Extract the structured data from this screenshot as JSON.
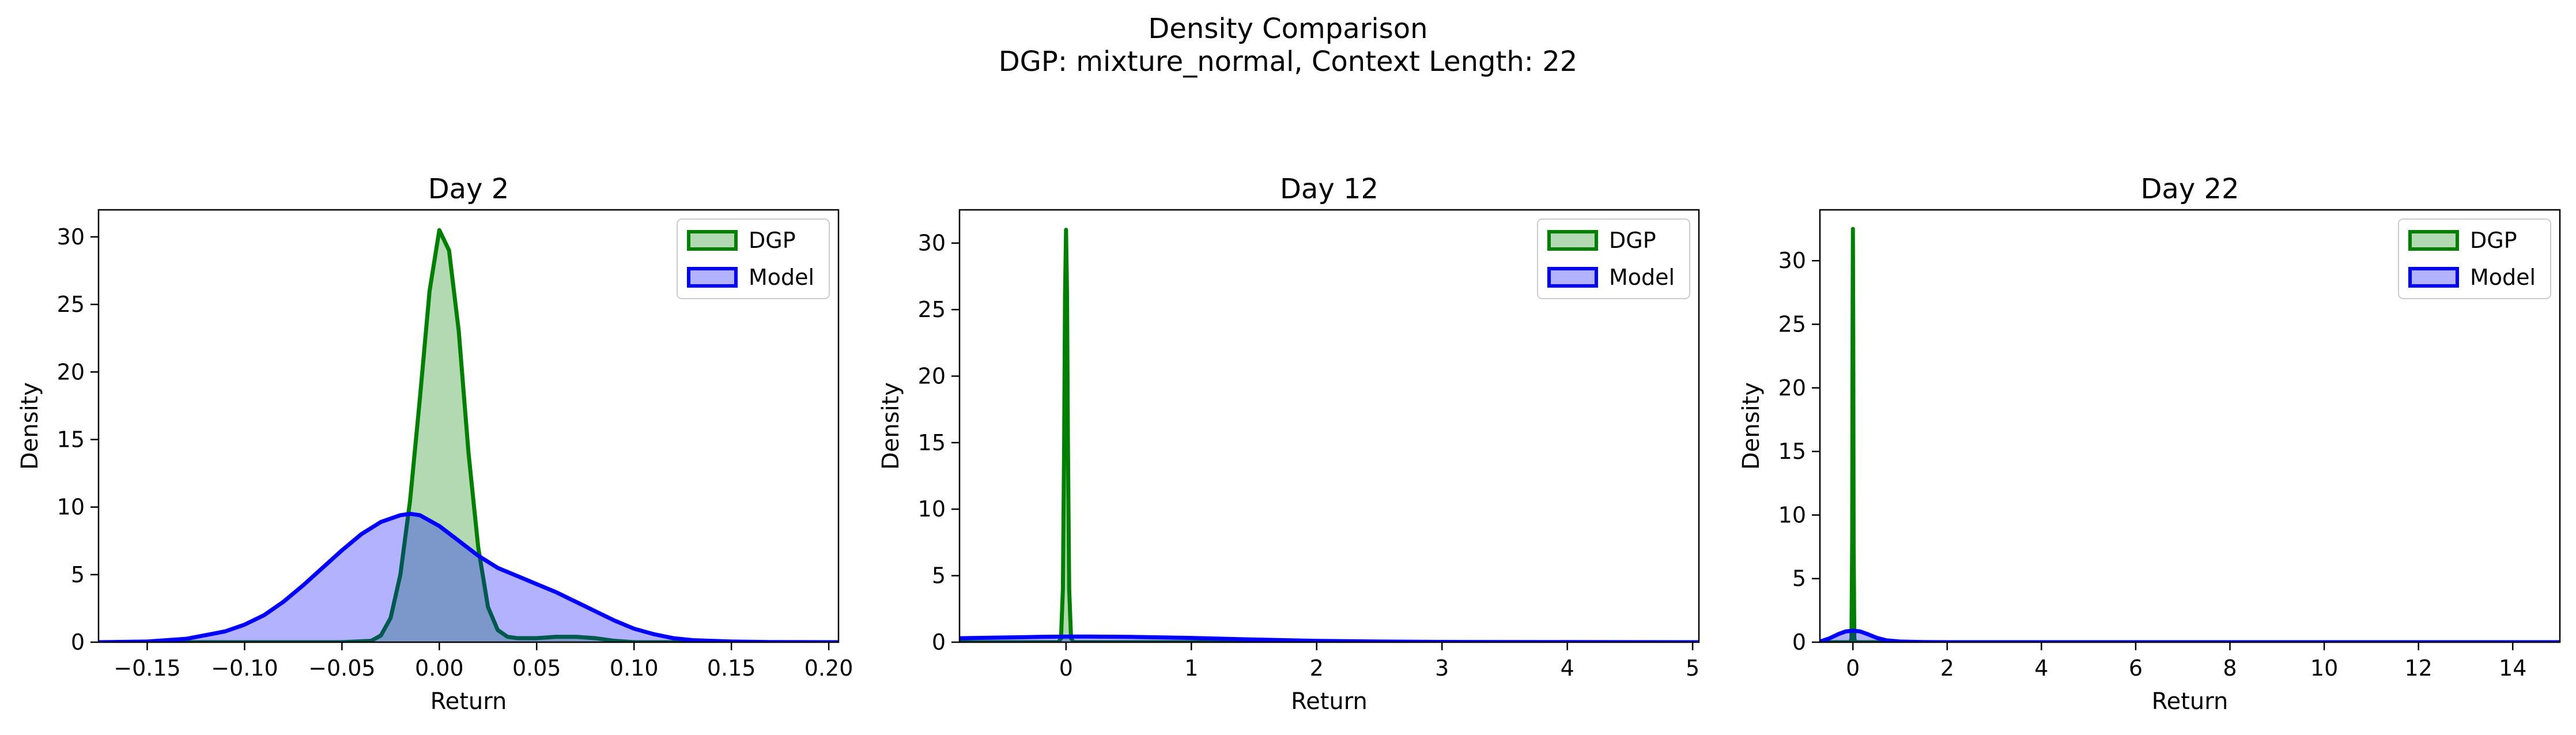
{
  "figure": {
    "title_line1": "Density Comparison",
    "title_line2": "DGP: mixture_normal, Context Length: 22"
  },
  "colors": {
    "dgp_line": "#008000",
    "dgp_fill": "#008000",
    "model_line": "#0000ff",
    "model_fill": "#0000ff"
  },
  "chart_data": [
    {
      "type": "area",
      "title": "Day 2",
      "xlabel": "Return",
      "ylabel": "Density",
      "xlim": [
        -0.175,
        0.205
      ],
      "ylim": [
        0,
        32
      ],
      "xticks": [
        -0.15,
        -0.1,
        -0.05,
        0.0,
        0.05,
        0.1,
        0.15,
        0.2
      ],
      "xtick_labels": [
        "−0.15",
        "−0.10",
        "−0.05",
        "0.00",
        "0.05",
        "0.10",
        "0.15",
        "0.20"
      ],
      "yticks": [
        0,
        5,
        10,
        15,
        20,
        25,
        30
      ],
      "grid": false,
      "legend": {
        "placement": "top-right",
        "entries": [
          "DGP",
          "Model"
        ]
      },
      "series": [
        {
          "name": "DGP",
          "x": [
            -0.175,
            -0.05,
            -0.035,
            -0.03,
            -0.025,
            -0.02,
            -0.015,
            -0.01,
            -0.005,
            0.0,
            0.005,
            0.01,
            0.015,
            0.02,
            0.025,
            0.03,
            0.035,
            0.04,
            0.05,
            0.06,
            0.07,
            0.08,
            0.09,
            0.1,
            0.205
          ],
          "y": [
            0,
            0,
            0.1,
            0.5,
            1.8,
            5.0,
            10.5,
            18.0,
            26.0,
            30.5,
            29.0,
            23.0,
            14.0,
            7.0,
            2.6,
            0.9,
            0.4,
            0.3,
            0.3,
            0.4,
            0.4,
            0.3,
            0.1,
            0,
            0
          ]
        },
        {
          "name": "Model",
          "x": [
            -0.175,
            -0.15,
            -0.13,
            -0.11,
            -0.1,
            -0.09,
            -0.08,
            -0.07,
            -0.06,
            -0.05,
            -0.04,
            -0.03,
            -0.02,
            -0.015,
            -0.01,
            -0.005,
            0.0,
            0.01,
            0.02,
            0.03,
            0.04,
            0.05,
            0.06,
            0.07,
            0.08,
            0.09,
            0.1,
            0.11,
            0.12,
            0.13,
            0.15,
            0.17,
            0.205
          ],
          "y": [
            0,
            0.05,
            0.25,
            0.8,
            1.3,
            2.0,
            3.0,
            4.2,
            5.5,
            6.8,
            8.0,
            8.9,
            9.4,
            9.5,
            9.4,
            9.0,
            8.6,
            7.5,
            6.4,
            5.5,
            4.9,
            4.3,
            3.7,
            3.0,
            2.3,
            1.6,
            1.0,
            0.6,
            0.3,
            0.15,
            0.05,
            0.01,
            0
          ]
        }
      ]
    },
    {
      "type": "area",
      "title": "Day 12",
      "xlabel": "Return",
      "ylabel": "Density",
      "xlim": [
        -0.85,
        5.05
      ],
      "ylim": [
        0,
        32.5
      ],
      "xticks": [
        0,
        1,
        2,
        3,
        4,
        5
      ],
      "xtick_labels": [
        "0",
        "1",
        "2",
        "3",
        "4",
        "5"
      ],
      "yticks": [
        0,
        5,
        10,
        15,
        20,
        25,
        30
      ],
      "grid": false,
      "legend": {
        "placement": "top-right",
        "entries": [
          "DGP",
          "Model"
        ]
      },
      "series": [
        {
          "name": "DGP",
          "x": [
            -0.85,
            -0.06,
            -0.04,
            -0.025,
            -0.015,
            -0.008,
            0.0,
            0.008,
            0.015,
            0.025,
            0.04,
            0.06,
            5.05
          ],
          "y": [
            0,
            0,
            0.3,
            4.0,
            15.0,
            26.0,
            31.0,
            26.0,
            15.0,
            4.0,
            0.3,
            0,
            0
          ]
        },
        {
          "name": "Model",
          "x": [
            -0.85,
            -0.5,
            -0.2,
            0.0,
            0.2,
            0.5,
            1.0,
            1.5,
            2.0,
            2.5,
            3.0,
            4.0,
            5.05
          ],
          "y": [
            0.3,
            0.35,
            0.4,
            0.42,
            0.42,
            0.4,
            0.32,
            0.2,
            0.1,
            0.05,
            0.02,
            0.01,
            0
          ]
        }
      ]
    },
    {
      "type": "area",
      "title": "Day 22",
      "xlabel": "Return",
      "ylabel": "Density",
      "xlim": [
        -0.7,
        15.0
      ],
      "ylim": [
        0,
        34
      ],
      "xticks": [
        0,
        2,
        4,
        6,
        8,
        10,
        12,
        14
      ],
      "xtick_labels": [
        "0",
        "2",
        "4",
        "6",
        "8",
        "10",
        "12",
        "14"
      ],
      "yticks": [
        0,
        5,
        10,
        15,
        20,
        25,
        30
      ],
      "grid": false,
      "legend": {
        "placement": "top-right",
        "entries": [
          "DGP",
          "Model"
        ]
      },
      "series": [
        {
          "name": "DGP",
          "x": [
            -0.7,
            -0.05,
            -0.03,
            -0.015,
            -0.007,
            0.0,
            0.007,
            0.015,
            0.03,
            0.05,
            15.0
          ],
          "y": [
            0,
            0,
            0.3,
            8.0,
            24.0,
            32.5,
            24.0,
            8.0,
            0.3,
            0,
            0
          ]
        },
        {
          "name": "Model",
          "x": [
            -0.7,
            -0.5,
            -0.3,
            -0.15,
            0.0,
            0.15,
            0.3,
            0.5,
            0.7,
            1.0,
            1.5,
            2.0,
            15.0
          ],
          "y": [
            0.05,
            0.3,
            0.65,
            0.85,
            0.9,
            0.85,
            0.65,
            0.35,
            0.15,
            0.05,
            0.01,
            0,
            0
          ]
        }
      ]
    }
  ]
}
